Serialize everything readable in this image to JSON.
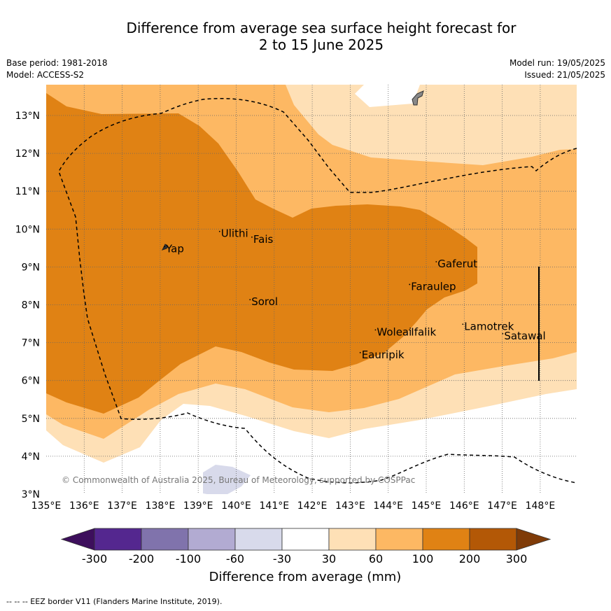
{
  "title_line1": "Difference from average sea surface height forecast for",
  "title_line2": "2 to 15 June 2025",
  "base_period": "Base period: 1981-2018",
  "model": "Model: ACCESS-S2",
  "model_run": "Model run: 19/05/2025",
  "issued": "Issued: 21/05/2025",
  "copyright": "© Commonwealth of Australia 2025, Bureau of Meteorology, supported by COSPPac",
  "footer_legend": "--  --  -- EEZ border V11 (Flanders Marine Institute, 2019).",
  "colorbar": {
    "label": "Difference from average (mm)",
    "ticks": [
      "-300",
      "-200",
      "-100",
      "-60",
      "-30",
      "30",
      "60",
      "100",
      "200",
      "300"
    ],
    "colors": [
      "#3d0f5c",
      "#54278f",
      "#8073ac",
      "#b2abd2",
      "#d8daeb",
      "#ffffff",
      "#fee0b6",
      "#fdb863",
      "#e08214",
      "#b35806",
      "#7f3b08"
    ]
  },
  "axes": {
    "lon_labels": [
      "135°E",
      "136°E",
      "137°E",
      "138°E",
      "139°E",
      "140°E",
      "141°E",
      "142°E",
      "143°E",
      "144°E",
      "145°E",
      "146°E",
      "147°E",
      "148°E"
    ],
    "lat_labels": [
      "3°N",
      "4°N",
      "5°N",
      "6°N",
      "7°N",
      "8°N",
      "9°N",
      "10°N",
      "11°N",
      "12°N",
      "13°N"
    ],
    "lon_range": [
      135,
      149
    ],
    "lat_range": [
      3,
      13.8
    ]
  },
  "places": [
    {
      "name": "Yap",
      "lon": 138.15,
      "lat": 9.5
    },
    {
      "name": "Ulithi",
      "lon": 139.6,
      "lat": 9.9
    },
    {
      "name": "Fais",
      "lon": 140.45,
      "lat": 9.75
    },
    {
      "name": "Gaferut",
      "lon": 145.3,
      "lat": 9.1
    },
    {
      "name": "Faraulep",
      "lon": 144.6,
      "lat": 8.5
    },
    {
      "name": "Sorol",
      "lon": 140.4,
      "lat": 8.1
    },
    {
      "name": "Lamotrek",
      "lon": 146.0,
      "lat": 7.45
    },
    {
      "name": "Woleai",
      "lon": 143.7,
      "lat": 7.3
    },
    {
      "name": "Ifalik",
      "lon": 144.6,
      "lat": 7.3
    },
    {
      "name": "Satawal",
      "lon": 147.05,
      "lat": 7.2
    },
    {
      "name": "Eauripik",
      "lon": 143.3,
      "lat": 6.7
    }
  ]
}
